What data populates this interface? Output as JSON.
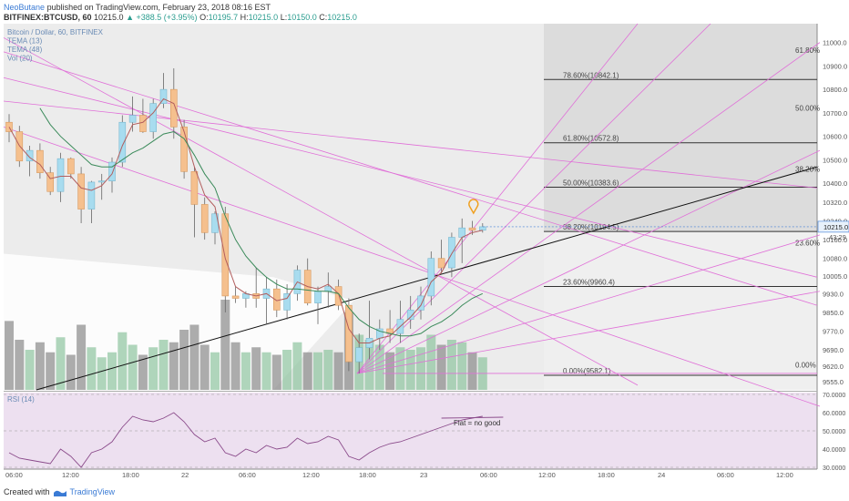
{
  "header": {
    "author": "NeoButane",
    "published_text": "published on TradingView.com, February 23, 2018 08:16 EST",
    "symbol": "BITFINEX:BTCUSD, 60",
    "last": "10215.0",
    "change": "▲ +388.5 (+3.95%)",
    "o_label": "O:",
    "o_val": "10195.7",
    "h_label": "H:",
    "h_val": "10215.0",
    "l_label": "L:",
    "l_val": "10150.0",
    "c_label": "C:",
    "c_val": "10215.0"
  },
  "footer": {
    "created_with": "Created with",
    "brand": "TradingView"
  },
  "colors": {
    "up": "#a8dcef",
    "down": "#f5c08e",
    "tema13": "#b25e5e",
    "tema48": "#3a8a5a",
    "fan": "#e070d8",
    "rsi": "#8a4a8a",
    "current": "#3a7bd5"
  },
  "chart_data": {
    "type": "candlestick",
    "legend": [
      "Bitcoin / Dollar, 60, BITFINEX",
      "TEMA (13)",
      "TEMA (48)",
      "Vol (20)"
    ],
    "price_axis_ticks": [
      "11000.0",
      "10900.0",
      "10800.0",
      "10700.0",
      "10600.0",
      "10500.0",
      "10400.0",
      "10320.0",
      "10240.0",
      "10160.0",
      "10080.0",
      "10005.0",
      "9930.0",
      "9850.0",
      "9770.0",
      "9690.0",
      "9620.0",
      "9555.0"
    ],
    "time_axis_ticks": [
      "06:00",
      "12:00",
      "18:00",
      "22",
      "06:00",
      "12:00",
      "18:00",
      "23",
      "06:00",
      "12:00",
      "18:00",
      "24",
      "06:00",
      "12:00"
    ],
    "current_price": "10215.0",
    "countdown": "43:29",
    "fib_levels": [
      {
        "label": "78.60%(10842.1)",
        "price": 10842.1
      },
      {
        "label": "61.80%(10572.8)",
        "price": 10572.8
      },
      {
        "label": "50.00%(10383.6)",
        "price": 10383.6
      },
      {
        "label": "38.20%(10194.5)",
        "price": 10194.5
      },
      {
        "label": "23.60%(9960.4)",
        "price": 9960.4
      },
      {
        "label": "0.00%(9582.1)",
        "price": 9582.1
      }
    ],
    "fib_fan_labels": [
      {
        "label": "61.80%",
        "price": 10955
      },
      {
        "label": "50.00%",
        "price": 10710
      },
      {
        "label": "38.20%",
        "price": 10450
      },
      {
        "label": "23.60%",
        "price": 10135
      },
      {
        "label": "0.00%",
        "price": 9615
      }
    ],
    "candles": [
      {
        "o": 10660,
        "h": 10695,
        "l": 10575,
        "c": 10620
      },
      {
        "o": 10620,
        "h": 10645,
        "l": 10470,
        "c": 10495
      },
      {
        "o": 10495,
        "h": 10560,
        "l": 10430,
        "c": 10540
      },
      {
        "o": 10540,
        "h": 10570,
        "l": 10420,
        "c": 10445
      },
      {
        "o": 10445,
        "h": 10470,
        "l": 10350,
        "c": 10365
      },
      {
        "o": 10365,
        "h": 10530,
        "l": 10320,
        "c": 10505
      },
      {
        "o": 10505,
        "h": 10510,
        "l": 10420,
        "c": 10440
      },
      {
        "o": 10440,
        "h": 10470,
        "l": 10230,
        "c": 10290
      },
      {
        "o": 10290,
        "h": 10410,
        "l": 10230,
        "c": 10405
      },
      {
        "o": 10405,
        "h": 10440,
        "l": 10330,
        "c": 10410
      },
      {
        "o": 10410,
        "h": 10510,
        "l": 10360,
        "c": 10490
      },
      {
        "o": 10490,
        "h": 10690,
        "l": 10470,
        "c": 10660
      },
      {
        "o": 10660,
        "h": 10770,
        "l": 10620,
        "c": 10690
      },
      {
        "o": 10690,
        "h": 10760,
        "l": 10615,
        "c": 10620
      },
      {
        "o": 10620,
        "h": 10760,
        "l": 10590,
        "c": 10740
      },
      {
        "o": 10740,
        "h": 10870,
        "l": 10720,
        "c": 10800
      },
      {
        "o": 10800,
        "h": 10890,
        "l": 10590,
        "c": 10640
      },
      {
        "o": 10640,
        "h": 10670,
        "l": 10420,
        "c": 10450
      },
      {
        "o": 10450,
        "h": 10470,
        "l": 10170,
        "c": 10310
      },
      {
        "o": 10310,
        "h": 10340,
        "l": 10160,
        "c": 10190
      },
      {
        "o": 10190,
        "h": 10280,
        "l": 10140,
        "c": 10270
      },
      {
        "o": 10270,
        "h": 10300,
        "l": 9850,
        "c": 9920
      },
      {
        "o": 9920,
        "h": 9960,
        "l": 9890,
        "c": 9910
      },
      {
        "o": 9910,
        "h": 9940,
        "l": 9870,
        "c": 9930
      },
      {
        "o": 9930,
        "h": 10040,
        "l": 9870,
        "c": 9910
      },
      {
        "o": 9910,
        "h": 10000,
        "l": 9800,
        "c": 9950
      },
      {
        "o": 9950,
        "h": 9990,
        "l": 9830,
        "c": 9860
      },
      {
        "o": 9860,
        "h": 9970,
        "l": 9820,
        "c": 9930
      },
      {
        "o": 9930,
        "h": 10050,
        "l": 9900,
        "c": 10030
      },
      {
        "o": 10030,
        "h": 10080,
        "l": 9880,
        "c": 9890
      },
      {
        "o": 9890,
        "h": 9960,
        "l": 9800,
        "c": 9940
      },
      {
        "o": 9940,
        "h": 10020,
        "l": 9870,
        "c": 9960
      },
      {
        "o": 9960,
        "h": 9990,
        "l": 9860,
        "c": 9880
      },
      {
        "o": 9880,
        "h": 9910,
        "l": 9600,
        "c": 9640
      },
      {
        "o": 9640,
        "h": 9760,
        "l": 9590,
        "c": 9700
      },
      {
        "o": 9700,
        "h": 9900,
        "l": 9650,
        "c": 9740
      },
      {
        "o": 9740,
        "h": 9820,
        "l": 9690,
        "c": 9780
      },
      {
        "o": 9780,
        "h": 9860,
        "l": 9720,
        "c": 9760
      },
      {
        "o": 9760,
        "h": 9900,
        "l": 9720,
        "c": 9820
      },
      {
        "o": 9820,
        "h": 9920,
        "l": 9780,
        "c": 9860
      },
      {
        "o": 9860,
        "h": 9960,
        "l": 9820,
        "c": 9920
      },
      {
        "o": 9920,
        "h": 10110,
        "l": 9880,
        "c": 10080
      },
      {
        "o": 10080,
        "h": 10160,
        "l": 10010,
        "c": 10040
      },
      {
        "o": 10040,
        "h": 10190,
        "l": 10000,
        "c": 10170
      },
      {
        "o": 10170,
        "h": 10250,
        "l": 10060,
        "c": 10210
      },
      {
        "o": 10210,
        "h": 10240,
        "l": 10180,
        "c": 10200
      },
      {
        "o": 10200,
        "h": 10230,
        "l": 10190,
        "c": 10215
      }
    ],
    "volume": [
      55,
      40,
      32,
      38,
      30,
      42,
      28,
      52,
      34,
      26,
      30,
      46,
      36,
      28,
      34,
      40,
      38,
      48,
      52,
      36,
      30,
      72,
      38,
      30,
      34,
      30,
      28,
      32,
      38,
      30,
      30,
      32,
      30,
      62,
      44,
      40,
      36,
      30,
      34,
      32,
      34,
      44,
      36,
      40,
      38,
      30,
      26
    ],
    "tema13": [
      10640,
      10560,
      10510,
      10480,
      10420,
      10430,
      10430,
      10380,
      10370,
      10390,
      10440,
      10560,
      10650,
      10660,
      10700,
      10760,
      10740,
      10620,
      10470,
      10350,
      10300,
      10080,
      9960,
      9930,
      9920,
      9930,
      9900,
      9910,
      9980,
      9960,
      9950,
      9970,
      9930,
      9780,
      9720,
      9720,
      9740,
      9750,
      9790,
      9830,
      9880,
      9980,
      10020,
      10100,
      10170,
      10190,
      10200
    ],
    "tema48": [
      null,
      null,
      null,
      10720,
      10650,
      10600,
      10560,
      10520,
      10480,
      10470,
      10470,
      10500,
      10530,
      10550,
      10580,
      10610,
      10620,
      10590,
      10520,
      10440,
      10380,
      10260,
      10160,
      10090,
      10040,
      10000,
      9970,
      9950,
      9950,
      9945,
      9940,
      9940,
      9930,
      9870,
      9820,
      9790,
      9770,
      9760,
      9750,
      9750,
      9760,
      9790,
      9810,
      9840,
      9880,
      9910,
      9930
    ],
    "rsi_title": "RSI (14)",
    "rsi_ticks": [
      "70.0000",
      "60.0000",
      "50.0000",
      "40.0000",
      "30.0000"
    ],
    "rsi": [
      38,
      35,
      34,
      33,
      32,
      40,
      36,
      30,
      38,
      40,
      44,
      52,
      58,
      56,
      55,
      57,
      60,
      55,
      48,
      44,
      46,
      38,
      36,
      40,
      38,
      42,
      40,
      41,
      46,
      43,
      44,
      47,
      45,
      36,
      34,
      38,
      41,
      43,
      44,
      46,
      48,
      50,
      52,
      54,
      56,
      57,
      58
    ],
    "annotation": "Flat = no good"
  }
}
